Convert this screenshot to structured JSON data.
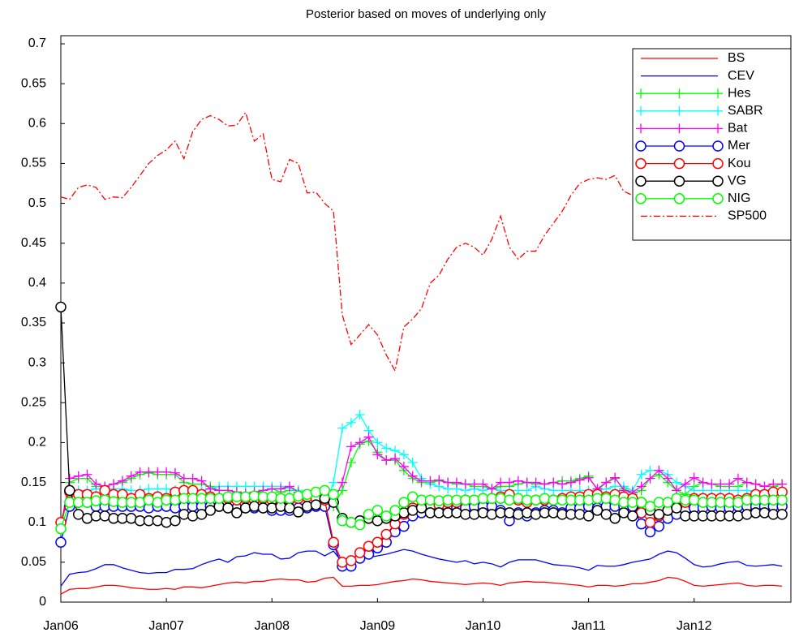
{
  "chart_data": {
    "type": "line",
    "title": "Posterior based on moves of underlying only",
    "categories": [
      "Jan06",
      null,
      null,
      null,
      null,
      null,
      null,
      null,
      null,
      null,
      null,
      null,
      "Jan07",
      null,
      null,
      null,
      null,
      null,
      null,
      null,
      null,
      null,
      null,
      null,
      "Jan08",
      null,
      null,
      null,
      null,
      null,
      null,
      null,
      null,
      null,
      null,
      null,
      "Jan09",
      null,
      null,
      null,
      null,
      null,
      null,
      null,
      null,
      null,
      null,
      null,
      "Jan10",
      null,
      null,
      null,
      null,
      null,
      null,
      null,
      null,
      null,
      null,
      null,
      "Jan11",
      null,
      null,
      null,
      null,
      null,
      null,
      null,
      null,
      null,
      null,
      null,
      "Jan12",
      null,
      null,
      null,
      null,
      null,
      null,
      null,
      null,
      null,
      null
    ],
    "ylim": [
      0,
      0.7
    ],
    "yticks": [
      0,
      0.05,
      0.1,
      0.15,
      0.2,
      0.25,
      0.3,
      0.35,
      0.4,
      0.45,
      0.5,
      0.55,
      0.6,
      0.65,
      0.7
    ],
    "legend": "upper right",
    "series": [
      {
        "name": "BS",
        "color": "#ff0000",
        "values": [
          0.01,
          0.016,
          0.017,
          0.017,
          0.019,
          0.021,
          0.021,
          0.02,
          0.018,
          0.017,
          0.016,
          0.016,
          0.017,
          0.016,
          0.019,
          0.019,
          0.018,
          0.02,
          0.022,
          0.024,
          0.025,
          0.024,
          0.026,
          0.026,
          0.028,
          0.029,
          0.028,
          0.028,
          0.025,
          0.026,
          0.03,
          0.031,
          0.02,
          0.02,
          0.021,
          0.021,
          0.022,
          0.024,
          0.026,
          0.027,
          0.029,
          0.028,
          0.026,
          0.025,
          0.024,
          0.023,
          0.022,
          0.023,
          0.024,
          0.023,
          0.021,
          0.024,
          0.025,
          0.026,
          0.025,
          0.025,
          0.024,
          0.023,
          0.022,
          0.021,
          0.019,
          0.021,
          0.021,
          0.02,
          0.021,
          0.023,
          0.023,
          0.025,
          0.027,
          0.031,
          0.03,
          0.026,
          0.021,
          0.02,
          0.021,
          0.022,
          0.023,
          0.024,
          0.021,
          0.02,
          0.021,
          0.021,
          0.02
        ]
      },
      {
        "name": "CEV",
        "color": "#0000ff",
        "values": [
          0.02,
          0.035,
          0.037,
          0.038,
          0.042,
          0.047,
          0.047,
          0.043,
          0.04,
          0.037,
          0.036,
          0.037,
          0.037,
          0.041,
          0.041,
          0.042,
          0.047,
          0.051,
          0.054,
          0.05,
          0.057,
          0.058,
          0.062,
          0.06,
          0.06,
          0.054,
          0.055,
          0.062,
          0.064,
          0.064,
          0.058,
          0.064,
          0.05,
          0.052,
          0.055,
          0.056,
          0.058,
          0.06,
          0.063,
          0.066,
          0.064,
          0.06,
          0.057,
          0.054,
          0.052,
          0.05,
          0.052,
          0.048,
          0.05,
          0.048,
          0.044,
          0.05,
          0.053,
          0.053,
          0.053,
          0.05,
          0.047,
          0.046,
          0.045,
          0.043,
          0.04,
          0.046,
          0.045,
          0.045,
          0.047,
          0.05,
          0.052,
          0.054,
          0.06,
          0.064,
          0.062,
          0.055,
          0.047,
          0.044,
          0.045,
          0.048,
          0.05,
          0.051,
          0.046,
          0.045,
          0.046,
          0.047,
          0.045
        ]
      },
      {
        "name": "Hes",
        "color": "#00ff00",
        "marker": "+",
        "values": [
          0.09,
          0.15,
          0.155,
          0.155,
          0.145,
          0.145,
          0.148,
          0.15,
          0.155,
          0.16,
          0.162,
          0.16,
          0.16,
          0.16,
          0.15,
          0.148,
          0.148,
          0.145,
          0.14,
          0.14,
          0.138,
          0.135,
          0.135,
          0.14,
          0.142,
          0.138,
          0.14,
          0.14,
          0.135,
          0.135,
          0.13,
          0.12,
          0.14,
          0.175,
          0.198,
          0.202,
          0.188,
          0.178,
          0.178,
          0.165,
          0.155,
          0.15,
          0.15,
          0.152,
          0.15,
          0.148,
          0.148,
          0.145,
          0.145,
          0.142,
          0.145,
          0.145,
          0.148,
          0.15,
          0.148,
          0.148,
          0.15,
          0.152,
          0.152,
          0.155,
          0.158,
          0.14,
          0.15,
          0.155,
          0.142,
          0.135,
          0.14,
          0.155,
          0.16,
          0.15,
          0.14,
          0.135,
          0.145,
          0.15,
          0.148,
          0.145,
          0.145,
          0.145,
          0.15,
          0.148,
          0.145,
          0.145,
          0.148
        ]
      },
      {
        "name": "SABR",
        "color": "#00ffff",
        "marker": "+",
        "values": [
          0.1,
          0.135,
          0.14,
          0.14,
          0.142,
          0.142,
          0.142,
          0.142,
          0.14,
          0.14,
          0.142,
          0.142,
          0.142,
          0.14,
          0.14,
          0.14,
          0.14,
          0.142,
          0.145,
          0.145,
          0.145,
          0.145,
          0.145,
          0.145,
          0.145,
          0.145,
          0.143,
          0.14,
          0.135,
          0.13,
          0.12,
          0.15,
          0.218,
          0.225,
          0.235,
          0.215,
          0.2,
          0.193,
          0.19,
          0.185,
          0.175,
          0.155,
          0.148,
          0.145,
          0.142,
          0.142,
          0.14,
          0.142,
          0.14,
          0.142,
          0.14,
          0.14,
          0.14,
          0.14,
          0.145,
          0.142,
          0.14,
          0.14,
          0.14,
          0.14,
          0.14,
          0.14,
          0.142,
          0.145,
          0.145,
          0.14,
          0.16,
          0.165,
          0.165,
          0.16,
          0.15,
          0.145,
          0.14,
          0.14,
          0.14,
          0.14,
          0.14,
          0.14,
          0.14,
          0.138,
          0.14,
          0.14,
          0.14
        ]
      },
      {
        "name": "Bat",
        "color": "#ff00ff",
        "marker": "+",
        "values": [
          0.095,
          0.155,
          0.158,
          0.16,
          0.148,
          0.145,
          0.148,
          0.152,
          0.158,
          0.163,
          0.163,
          0.163,
          0.163,
          0.162,
          0.155,
          0.155,
          0.152,
          0.142,
          0.14,
          0.14,
          0.138,
          0.136,
          0.138,
          0.14,
          0.142,
          0.142,
          0.145,
          0.138,
          0.135,
          0.13,
          0.12,
          0.125,
          0.15,
          0.195,
          0.2,
          0.207,
          0.185,
          0.178,
          0.18,
          0.17,
          0.158,
          0.152,
          0.152,
          0.153,
          0.15,
          0.15,
          0.148,
          0.148,
          0.148,
          0.142,
          0.15,
          0.15,
          0.152,
          0.15,
          0.15,
          0.148,
          0.15,
          0.148,
          0.15,
          0.153,
          0.156,
          0.142,
          0.15,
          0.156,
          0.14,
          0.138,
          0.145,
          0.155,
          0.165,
          0.155,
          0.14,
          0.148,
          0.156,
          0.15,
          0.148,
          0.148,
          0.148,
          0.155,
          0.15,
          0.148,
          0.145,
          0.148,
          0.148
        ]
      },
      {
        "name": "Mer",
        "color": "#0000ff",
        "marker": "o",
        "values": [
          0.075,
          0.12,
          0.125,
          0.125,
          0.12,
          0.12,
          0.12,
          0.12,
          0.12,
          0.12,
          0.118,
          0.12,
          0.12,
          0.118,
          0.12,
          0.12,
          0.12,
          0.12,
          0.12,
          0.118,
          0.118,
          0.118,
          0.118,
          0.118,
          0.115,
          0.115,
          0.115,
          0.118,
          0.118,
          0.12,
          0.12,
          0.072,
          0.045,
          0.045,
          0.055,
          0.06,
          0.068,
          0.075,
          0.088,
          0.095,
          0.108,
          0.112,
          0.115,
          0.115,
          0.118,
          0.118,
          0.118,
          0.12,
          0.12,
          0.12,
          0.115,
          0.102,
          0.112,
          0.108,
          0.112,
          0.115,
          0.115,
          0.112,
          0.118,
          0.118,
          0.12,
          0.118,
          0.12,
          0.12,
          0.12,
          0.12,
          0.098,
          0.088,
          0.095,
          0.105,
          0.11,
          0.115,
          0.118,
          0.118,
          0.12,
          0.118,
          0.118,
          0.12,
          0.12,
          0.12,
          0.12,
          0.12,
          0.12
        ]
      },
      {
        "name": "Kou",
        "color": "#ff0000",
        "marker": "o",
        "values": [
          0.1,
          0.138,
          0.135,
          0.135,
          0.132,
          0.14,
          0.135,
          0.135,
          0.13,
          0.135,
          0.13,
          0.132,
          0.13,
          0.138,
          0.14,
          0.14,
          0.135,
          0.132,
          0.13,
          0.13,
          0.128,
          0.13,
          0.128,
          0.13,
          0.128,
          0.128,
          0.128,
          0.13,
          0.132,
          0.13,
          0.128,
          0.075,
          0.05,
          0.052,
          0.062,
          0.07,
          0.075,
          0.085,
          0.098,
          0.11,
          0.118,
          0.12,
          0.12,
          0.122,
          0.125,
          0.125,
          0.128,
          0.128,
          0.13,
          0.13,
          0.132,
          0.135,
          0.128,
          0.125,
          0.128,
          0.128,
          0.128,
          0.13,
          0.132,
          0.132,
          0.135,
          0.135,
          0.132,
          0.135,
          0.132,
          0.13,
          0.112,
          0.1,
          0.108,
          0.115,
          0.12,
          0.125,
          0.13,
          0.13,
          0.13,
          0.13,
          0.13,
          0.128,
          0.13,
          0.135,
          0.135,
          0.138,
          0.138
        ]
      },
      {
        "name": "VG",
        "color": "#000000",
        "marker": "o",
        "values": [
          0.37,
          0.14,
          0.11,
          0.105,
          0.108,
          0.108,
          0.105,
          0.105,
          0.105,
          0.102,
          0.102,
          0.102,
          0.1,
          0.102,
          0.11,
          0.108,
          0.11,
          0.115,
          0.12,
          0.118,
          0.112,
          0.118,
          0.12,
          0.118,
          0.118,
          0.12,
          0.118,
          0.113,
          0.12,
          0.122,
          0.13,
          0.125,
          0.105,
          0.1,
          0.102,
          0.105,
          0.102,
          0.105,
          0.108,
          0.112,
          0.115,
          0.118,
          0.112,
          0.112,
          0.112,
          0.112,
          0.11,
          0.11,
          0.112,
          0.11,
          0.112,
          0.112,
          0.11,
          0.112,
          0.11,
          0.112,
          0.112,
          0.11,
          0.11,
          0.11,
          0.108,
          0.115,
          0.11,
          0.105,
          0.112,
          0.108,
          0.125,
          0.115,
          0.11,
          0.115,
          0.118,
          0.108,
          0.108,
          0.108,
          0.108,
          0.108,
          0.108,
          0.108,
          0.11,
          0.112,
          0.112,
          0.11,
          0.11
        ]
      },
      {
        "name": "NIG",
        "color": "#00ff00",
        "marker": "o",
        "values": [
          0.092,
          0.125,
          0.125,
          0.125,
          0.127,
          0.128,
          0.126,
          0.125,
          0.125,
          0.125,
          0.128,
          0.125,
          0.128,
          0.128,
          0.13,
          0.13,
          0.13,
          0.13,
          0.13,
          0.132,
          0.132,
          0.132,
          0.133,
          0.132,
          0.132,
          0.13,
          0.13,
          0.133,
          0.135,
          0.138,
          0.14,
          0.135,
          0.102,
          0.1,
          0.097,
          0.11,
          0.115,
          0.108,
          0.115,
          0.125,
          0.132,
          0.128,
          0.128,
          0.127,
          0.128,
          0.128,
          0.128,
          0.128,
          0.13,
          0.13,
          0.13,
          0.128,
          0.13,
          0.128,
          0.128,
          0.13,
          0.128,
          0.128,
          0.128,
          0.128,
          0.128,
          0.13,
          0.13,
          0.128,
          0.125,
          0.125,
          0.125,
          0.12,
          0.125,
          0.125,
          0.13,
          0.128,
          0.128,
          0.125,
          0.125,
          0.125,
          0.125,
          0.125,
          0.128,
          0.128,
          0.128,
          0.128,
          0.128
        ]
      },
      {
        "name": "SP500",
        "color": "#ff0000",
        "dash": "dashdot",
        "values": [
          0.508,
          0.505,
          0.52,
          0.523,
          0.52,
          0.505,
          0.508,
          0.507,
          0.52,
          0.535,
          0.55,
          0.56,
          0.567,
          0.578,
          0.556,
          0.59,
          0.605,
          0.61,
          0.605,
          0.597,
          0.598,
          0.614,
          0.578,
          0.587,
          0.53,
          0.527,
          0.555,
          0.55,
          0.513,
          0.514,
          0.5,
          0.49,
          0.36,
          0.323,
          0.335,
          0.348,
          0.335,
          0.31,
          0.29,
          0.345,
          0.355,
          0.368,
          0.4,
          0.41,
          0.43,
          0.445,
          0.45,
          0.445,
          0.435,
          0.455,
          0.484,
          0.445,
          0.43,
          0.44,
          0.44,
          0.46,
          0.475,
          0.49,
          0.51,
          0.525,
          0.53,
          0.532,
          0.53,
          0.535,
          0.515,
          0.51,
          0.52,
          0.49,
          0.47,
          0.48,
          0.5,
          0.51,
          0.52,
          0.53,
          0.55,
          0.56,
          0.56,
          0.58,
          0.57,
          0.59,
          0.6,
          0.59,
          0.6
        ]
      }
    ]
  }
}
